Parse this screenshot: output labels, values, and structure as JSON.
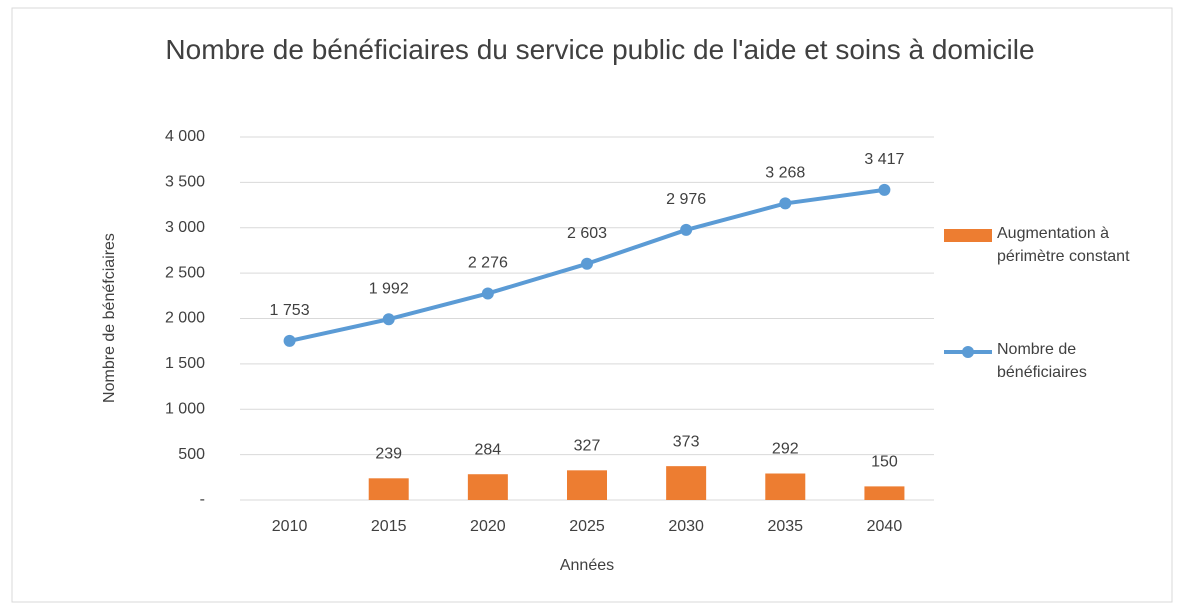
{
  "chart_data": {
    "type": "combo",
    "title": "Nombre de bénéficiaires du service public de l'aide et soins à domicile",
    "x_label": "Années",
    "y_label": "Nombre de bénéfciaires",
    "categories": [
      "2010",
      "2015",
      "2020",
      "2025",
      "2030",
      "2035",
      "2040"
    ],
    "series": [
      {
        "name": "Augmentation à périmètre constant",
        "type": "bar",
        "color": "#ed7d31",
        "values": [
          null,
          239,
          284,
          327,
          373,
          292,
          150
        ]
      },
      {
        "name": "Nombre de bénéficiaires",
        "type": "line",
        "color": "#5b9bd5",
        "values": [
          1753,
          1992,
          2276,
          2603,
          2976,
          3268,
          3417
        ],
        "value_labels": [
          "1 753",
          "1 992",
          "2 276",
          "2 603",
          "2 976",
          "3 268",
          "3 417"
        ]
      }
    ],
    "ylim": [
      0,
      4000
    ],
    "yticks": [
      {
        "value": 0,
        "label": "-"
      },
      500,
      {
        "value": 1000,
        "label": "1 000"
      },
      {
        "value": 1500,
        "label": "1 500"
      },
      {
        "value": 2000,
        "label": "2 000"
      },
      {
        "value": 2500,
        "label": "2 500"
      },
      {
        "value": 3000,
        "label": "3 000"
      },
      {
        "value": 3500,
        "label": "3 500"
      },
      {
        "value": 4000,
        "label": "4 000"
      }
    ],
    "grid": true,
    "legend": "right"
  }
}
